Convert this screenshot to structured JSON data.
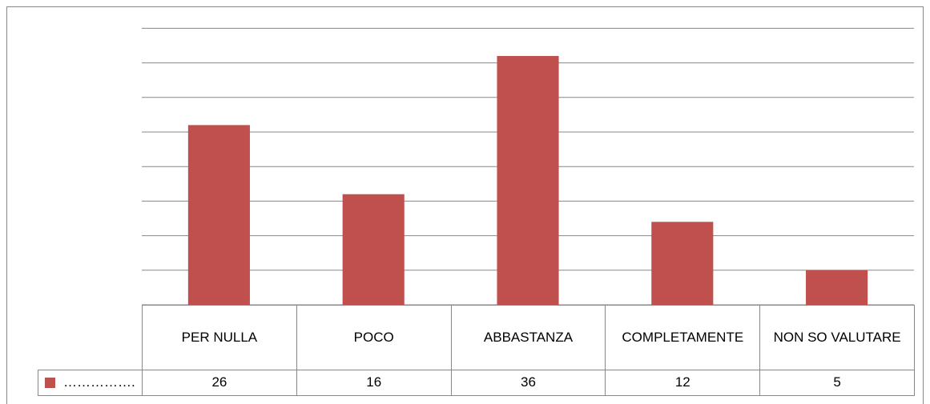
{
  "chart_data": {
    "type": "bar",
    "categories": [
      "PER NULLA",
      "POCO",
      "ABBASTANZA",
      "COMPLETAMENTE",
      "NON SO VALUTARE"
    ],
    "series": [
      {
        "name": "…………….",
        "color": "#c0504d",
        "values": [
          26,
          16,
          36,
          12,
          5
        ]
      }
    ],
    "ylim": [
      0,
      40
    ],
    "yticks": [
      0,
      5,
      10,
      15,
      20,
      25,
      30,
      35,
      40
    ],
    "grid": true
  }
}
